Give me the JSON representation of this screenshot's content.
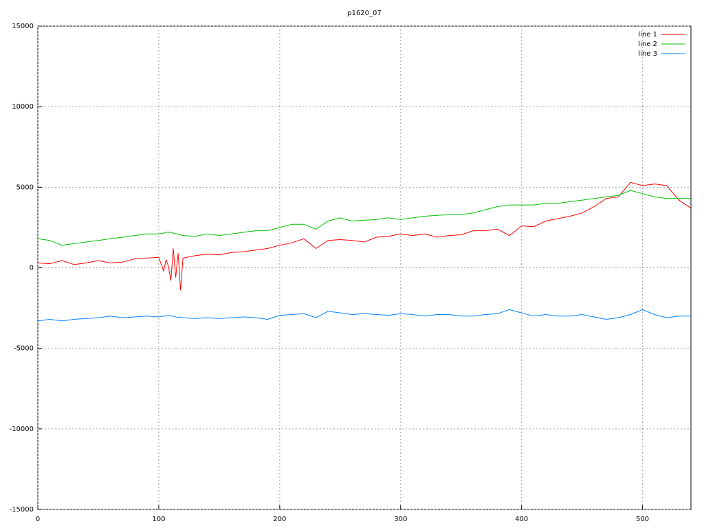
{
  "chart_data": {
    "type": "line",
    "title": "p1620_07",
    "x": [
      0,
      10,
      20,
      30,
      40,
      50,
      60,
      70,
      80,
      90,
      100,
      104,
      106,
      108,
      110,
      112,
      114,
      116,
      118,
      120,
      130,
      140,
      150,
      160,
      170,
      180,
      190,
      200,
      210,
      220,
      230,
      240,
      250,
      260,
      270,
      280,
      290,
      300,
      310,
      320,
      330,
      340,
      350,
      360,
      370,
      380,
      390,
      400,
      410,
      420,
      430,
      440,
      450,
      460,
      470,
      480,
      490,
      500,
      510,
      520,
      530,
      540
    ],
    "series": [
      {
        "name": "line 1",
        "color": "#ff0000",
        "values": [
          300,
          250,
          450,
          200,
          300,
          450,
          300,
          350,
          550,
          600,
          650,
          -200,
          500,
          100,
          -800,
          1200,
          -600,
          900,
          -1400,
          600,
          750,
          850,
          800,
          950,
          1000,
          1100,
          1200,
          1400,
          1550,
          1800,
          1200,
          1700,
          1750,
          1700,
          1600,
          1900,
          1950,
          2100,
          2000,
          2100,
          1900,
          2000,
          2050,
          2300,
          2300,
          2400,
          2000,
          2600,
          2550,
          2900,
          3050,
          3200,
          3400,
          3800,
          4300,
          4400,
          5300,
          5100,
          5200,
          5100,
          4200,
          3700
        ]
      },
      {
        "name": "line 2",
        "color": "#00c000",
        "values": [
          1800,
          1700,
          1400,
          1500,
          1600,
          1700,
          1800,
          1900,
          2000,
          2100,
          2100,
          2150,
          2200,
          2200,
          2200,
          2150,
          2100,
          2100,
          2050,
          2000,
          1950,
          2100,
          2000,
          2100,
          2200,
          2300,
          2300,
          2500,
          2700,
          2700,
          2400,
          2900,
          3100,
          2900,
          2950,
          3000,
          3100,
          3000,
          3100,
          3200,
          3250,
          3300,
          3300,
          3400,
          3600,
          3800,
          3900,
          3900,
          3900,
          4000,
          4000,
          4100,
          4200,
          4300,
          4400,
          4500,
          4800,
          4600,
          4400,
          4300,
          4300,
          4300
        ]
      },
      {
        "name": "line 3",
        "color": "#0080ff",
        "values": [
          -3300,
          -3200,
          -3300,
          -3200,
          -3150,
          -3100,
          -3000,
          -3100,
          -3050,
          -3000,
          -3050,
          -3000,
          -3000,
          -2950,
          -3000,
          -3000,
          -3050,
          -3100,
          -3050,
          -3100,
          -3150,
          -3100,
          -3150,
          -3100,
          -3050,
          -3100,
          -3200,
          -2950,
          -2900,
          -2850,
          -3100,
          -2700,
          -2800,
          -2900,
          -2850,
          -2900,
          -2950,
          -2850,
          -2900,
          -3000,
          -2900,
          -2900,
          -3000,
          -3000,
          -2900,
          -2850,
          -2600,
          -2800,
          -3000,
          -2900,
          -3000,
          -3000,
          -2900,
          -3050,
          -3200,
          -3100,
          -2900,
          -2600,
          -2900,
          -3100,
          -3000,
          -3000
        ]
      }
    ],
    "xlim": [
      0,
      540
    ],
    "xticks": [
      0,
      100,
      200,
      300,
      400,
      500
    ],
    "ylim": [
      -15000,
      15000
    ],
    "yticks": [
      -15000,
      -10000,
      -5000,
      0,
      5000,
      10000,
      15000
    ],
    "grid": true,
    "legend": "top-right"
  }
}
